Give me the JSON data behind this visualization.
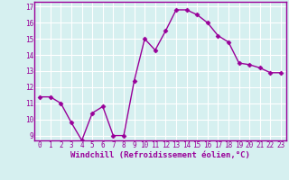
{
  "x": [
    0,
    1,
    2,
    3,
    4,
    5,
    6,
    7,
    8,
    9,
    10,
    11,
    12,
    13,
    14,
    15,
    16,
    17,
    18,
    19,
    20,
    21,
    22,
    23
  ],
  "y": [
    11.4,
    11.4,
    11.0,
    9.8,
    8.7,
    10.4,
    10.8,
    9.0,
    9.0,
    12.4,
    15.0,
    14.3,
    15.5,
    16.8,
    16.8,
    16.5,
    16.0,
    15.2,
    14.8,
    13.5,
    13.4,
    13.2,
    12.9,
    12.9
  ],
  "line_color": "#990099",
  "marker": "D",
  "marker_size": 2.5,
  "bg_color": "#d6f0f0",
  "grid_color": "#ffffff",
  "xlabel": "Windchill (Refroidissement éolien,°C)",
  "xlabel_color": "#990099",
  "tick_color": "#990099",
  "spine_color": "#990099",
  "ylim_min": 8.7,
  "ylim_max": 17.3,
  "xlim_min": -0.5,
  "xlim_max": 23.5,
  "yticks": [
    9,
    10,
    11,
    12,
    13,
    14,
    15,
    16,
    17
  ],
  "xticks": [
    0,
    1,
    2,
    3,
    4,
    5,
    6,
    7,
    8,
    9,
    10,
    11,
    12,
    13,
    14,
    15,
    16,
    17,
    18,
    19,
    20,
    21,
    22,
    23
  ],
  "tick_fontsize": 5.5,
  "xlabel_fontsize": 6.5,
  "line_width": 1.0
}
